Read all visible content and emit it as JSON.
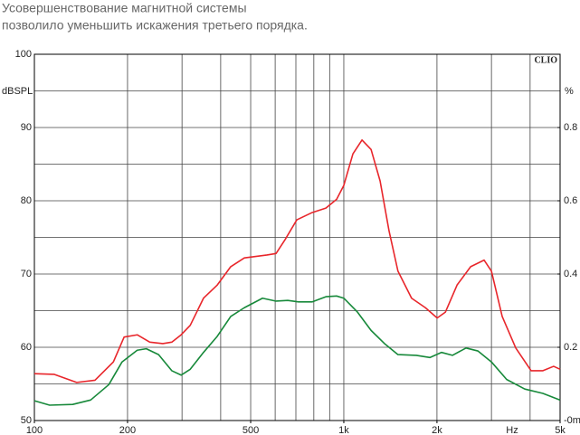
{
  "chart_data": {
    "type": "line",
    "title": "Усовершенствование магнитной системы",
    "subtitle": "позволило уменьшить искажения третьего порядка.",
    "annotation": "CLIO",
    "y_label": "dBSPL",
    "y2_label": "%",
    "x_label": "Hz",
    "log_x": true,
    "grid": true,
    "xlim": [
      100,
      5000
    ],
    "xticks": [
      100,
      200,
      500,
      {
        "value": 1000,
        "label": "1k"
      },
      {
        "value": 2000,
        "label": "2k"
      },
      {
        "value": 5000,
        "label": "5k"
      }
    ],
    "x_grid": [
      200,
      300,
      400,
      500,
      600,
      700,
      800,
      900,
      1000,
      2000,
      3000,
      4000
    ],
    "ylim": [
      50,
      100
    ],
    "yticks": [
      50,
      60,
      70,
      80,
      90,
      100
    ],
    "y_minor_grid": [
      55,
      65,
      75,
      85,
      95
    ],
    "y2lim": [
      0,
      1
    ],
    "y2ticks": [
      {
        "value": 0,
        "label": "-0m"
      },
      0.2,
      0.4,
      0.6,
      0.8
    ],
    "series": [
      {
        "name": "red",
        "color": "#e8262b",
        "x": [
          100,
          116,
          137,
          157,
          180,
          195,
          215,
          236,
          260,
          278,
          298,
          319,
          352,
          390,
          431,
          477,
          565,
          604,
          646,
          705,
          791,
          875,
          948,
          1000,
          1070,
          1145,
          1225,
          1310,
          1400,
          1496,
          1656,
          1835,
          2003,
          2130,
          2323,
          2570,
          2840,
          3000,
          3250,
          3595,
          4030,
          4400,
          4765,
          5000
        ],
        "values": [
          56.4,
          56.3,
          55.2,
          55.5,
          58,
          61.4,
          61.7,
          60.7,
          60.5,
          60.7,
          61.7,
          63,
          66.7,
          68.5,
          71,
          72.2,
          72.6,
          72.8,
          74.7,
          77.4,
          78.4,
          79,
          80.2,
          82.1,
          86.4,
          88.3,
          87,
          82.7,
          75.9,
          70.4,
          66.7,
          65.4,
          64,
          64.8,
          68.5,
          71,
          71.9,
          70.4,
          64.2,
          59.9,
          56.8,
          56.8,
          57.4,
          57
        ]
      },
      {
        "name": "green",
        "color": "#17893a",
        "x": [
          100,
          112,
          133,
          152,
          174,
          192,
          215,
          230,
          252,
          278,
          298,
          319,
          352,
          390,
          431,
          477,
          546,
          604,
          659,
          714,
          791,
          875,
          948,
          1000,
          1107,
          1225,
          1354,
          1496,
          1715,
          1897,
          2070,
          2244,
          2483,
          2711,
          3000,
          3360,
          3845,
          4400,
          5000
        ],
        "values": [
          52.7,
          52.1,
          52.2,
          52.8,
          54.9,
          58,
          59.6,
          59.8,
          59,
          56.8,
          56.2,
          57,
          59.3,
          61.5,
          64.2,
          65.4,
          66.7,
          66.3,
          66.4,
          66.2,
          66.2,
          66.9,
          67,
          66.7,
          64.8,
          62.3,
          60.5,
          59,
          58.9,
          58.6,
          59.3,
          58.9,
          59.9,
          59.5,
          58,
          55.6,
          54.3,
          53.7,
          52.8
        ]
      }
    ]
  }
}
